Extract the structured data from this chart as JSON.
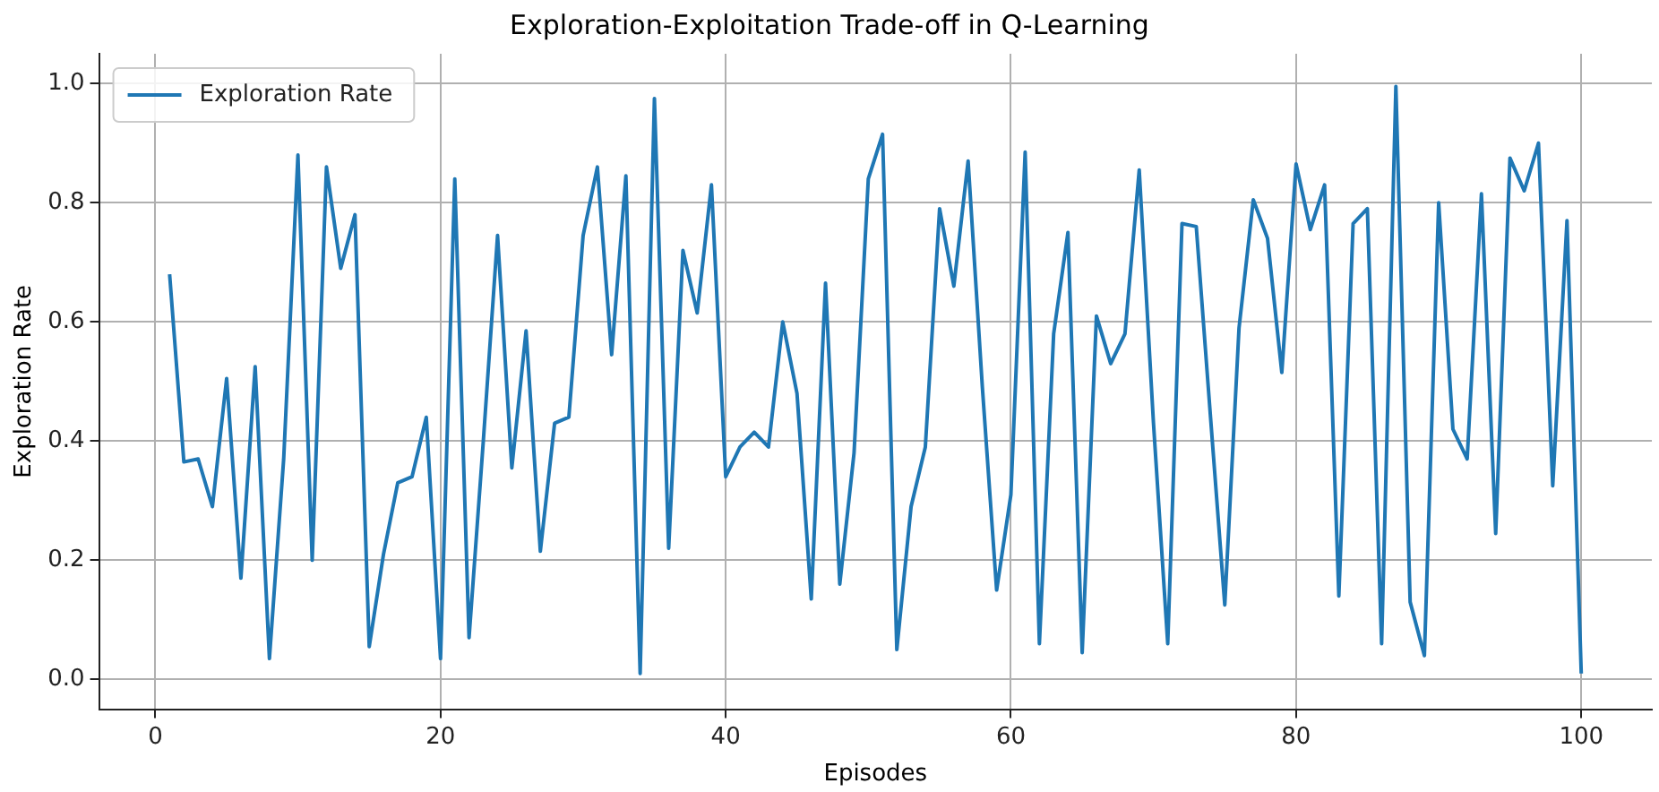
{
  "chart_data": {
    "type": "line",
    "title": "Exploration-Exploitation Trade-off in Q-Learning",
    "xlabel": "Episodes",
    "ylabel": "Exploration Rate",
    "x": [
      1,
      2,
      3,
      4,
      5,
      6,
      7,
      8,
      9,
      10,
      11,
      12,
      13,
      14,
      15,
      16,
      17,
      18,
      19,
      20,
      21,
      22,
      23,
      24,
      25,
      26,
      27,
      28,
      29,
      30,
      31,
      32,
      33,
      34,
      35,
      36,
      37,
      38,
      39,
      40,
      41,
      42,
      43,
      44,
      45,
      46,
      47,
      48,
      49,
      50,
      51,
      52,
      53,
      54,
      55,
      56,
      57,
      58,
      59,
      60,
      61,
      62,
      63,
      64,
      65,
      66,
      67,
      68,
      69,
      70,
      71,
      72,
      73,
      74,
      75,
      76,
      77,
      78,
      79,
      80,
      81,
      82,
      83,
      84,
      85,
      86,
      87,
      88,
      89,
      90,
      91,
      92,
      93,
      94,
      95,
      96,
      97,
      98,
      99,
      100
    ],
    "series": [
      {
        "name": "Exploration Rate",
        "color": "#1f77b4",
        "values": [
          0.68,
          0.365,
          0.37,
          0.29,
          0.505,
          0.17,
          0.525,
          0.035,
          0.37,
          0.88,
          0.2,
          0.86,
          0.69,
          0.78,
          0.055,
          0.21,
          0.33,
          0.34,
          0.44,
          0.035,
          0.84,
          0.07,
          0.4,
          0.745,
          0.355,
          0.585,
          0.215,
          0.43,
          0.44,
          0.745,
          0.86,
          0.545,
          0.845,
          0.01,
          0.975,
          0.22,
          0.72,
          0.615,
          0.83,
          0.34,
          0.39,
          0.415,
          0.39,
          0.6,
          0.48,
          0.135,
          0.665,
          0.16,
          0.38,
          0.84,
          0.915,
          0.05,
          0.29,
          0.39,
          0.79,
          0.66,
          0.87,
          0.49,
          0.15,
          0.31,
          0.885,
          0.06,
          0.58,
          0.75,
          0.045,
          0.61,
          0.53,
          0.58,
          0.855,
          0.43,
          0.06,
          0.765,
          0.76,
          0.44,
          0.125,
          0.59,
          0.805,
          0.74,
          0.515,
          0.865,
          0.755,
          0.83,
          0.14,
          0.765,
          0.79,
          0.06,
          0.995,
          0.13,
          0.04,
          0.8,
          0.42,
          0.37,
          0.815,
          0.245,
          0.875,
          0.82,
          0.9,
          0.325,
          0.77,
          0.01
        ]
      }
    ],
    "xlim": [
      -3.95,
      104.95
    ],
    "xticks": [
      0,
      20,
      40,
      60,
      80,
      100
    ],
    "ylim": [
      -0.05,
      1.05
    ],
    "yticks": [
      {
        "value": 0,
        "label": "0.0"
      },
      {
        "value": 0.2,
        "label": "0.2"
      },
      {
        "value": 0.4,
        "label": "0.4"
      },
      {
        "value": 0.6,
        "label": "0.6"
      },
      {
        "value": 0.8,
        "label": "0.8"
      },
      {
        "value": 1,
        "label": "1.0"
      }
    ],
    "grid": true,
    "legend": "top left",
    "marker": "none",
    "line_style": "solid"
  }
}
